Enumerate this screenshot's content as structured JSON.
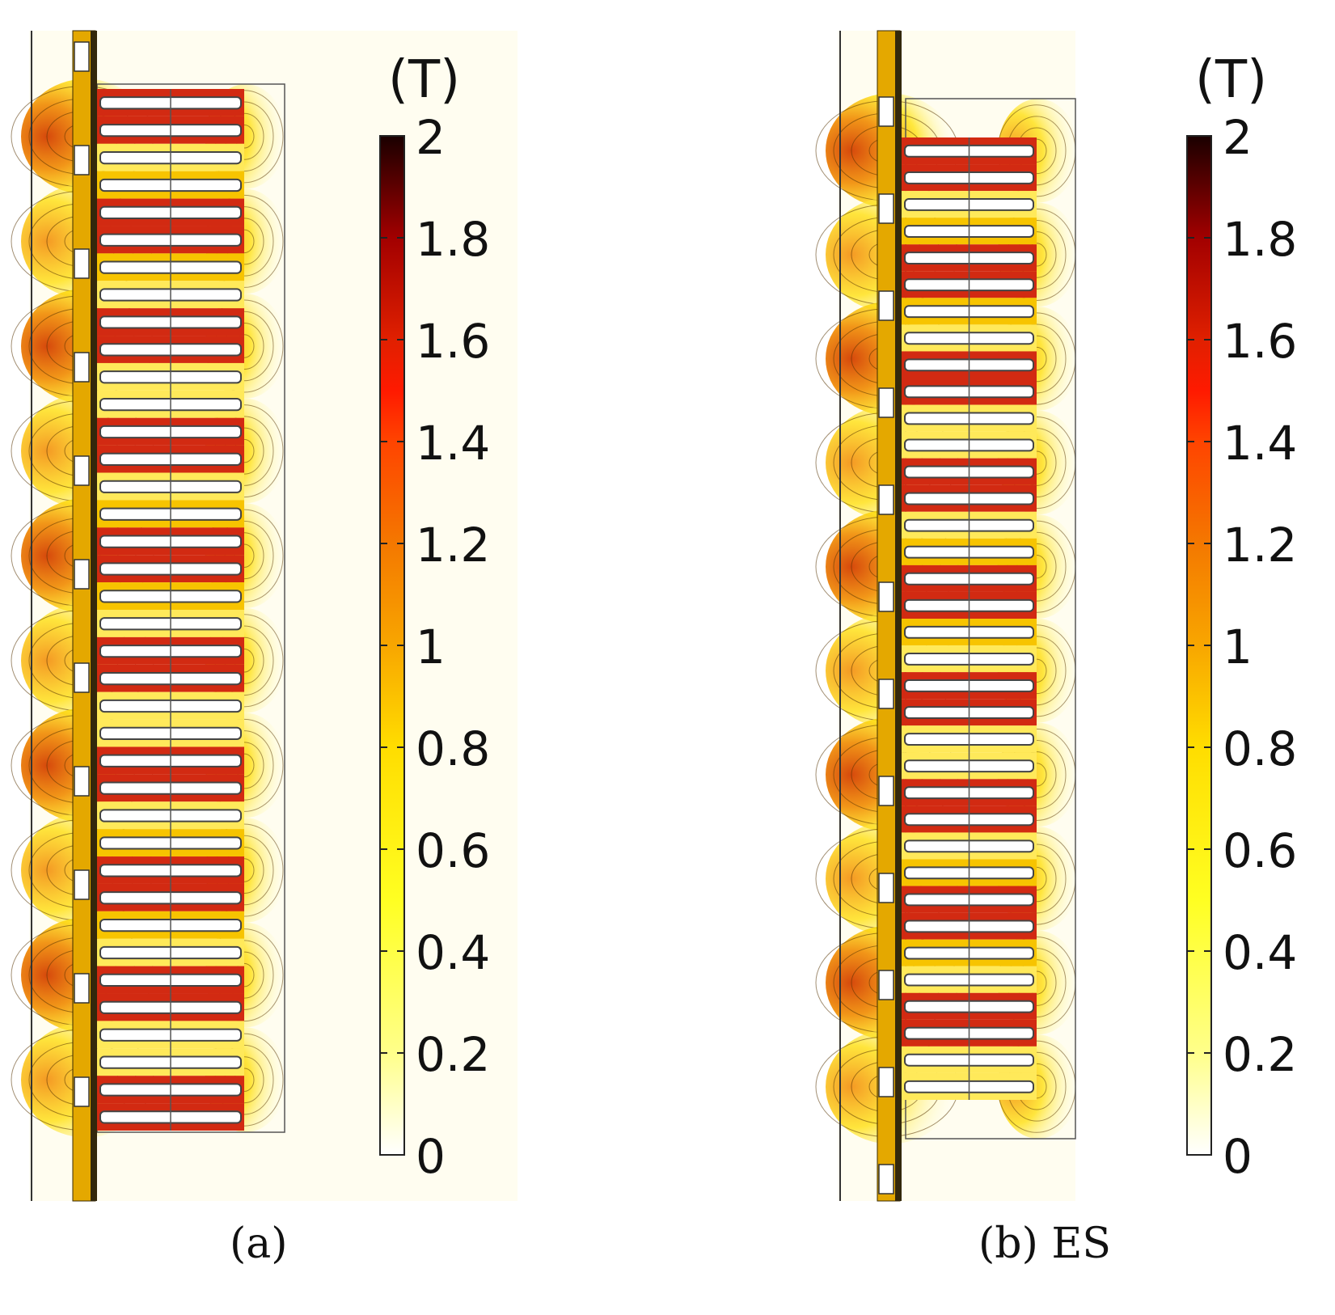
{
  "colorbar": {
    "unit": "(T)",
    "ticks": [
      "0",
      "0.2",
      "0.4",
      "0.6",
      "0.8",
      "1",
      "1.2",
      "1.4",
      "1.6",
      "1.8",
      "2"
    ],
    "range": [
      0,
      2
    ],
    "colors": [
      "#ffffff",
      "#ffff8a",
      "#ffff22",
      "#ffdd00",
      "#f8a600",
      "#f47800",
      "#ff4400",
      "#ff1a00",
      "#e02000",
      "#a20000",
      "#1a0000"
    ]
  },
  "panels": [
    {
      "caption": "(a)"
    },
    {
      "caption": "(b) ES"
    }
  ]
}
